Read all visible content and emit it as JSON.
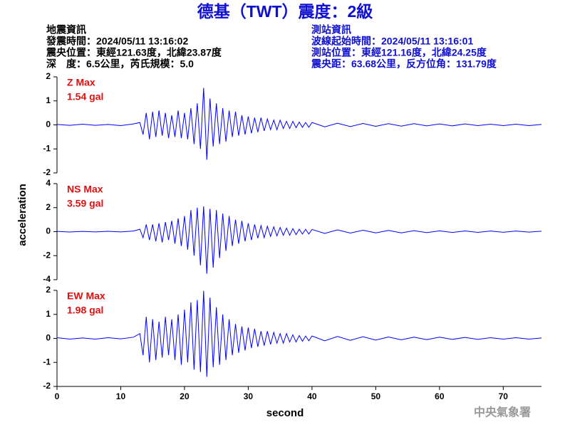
{
  "header": {
    "title": "德基（TWT）震度：2級",
    "left": [
      "地震資訊",
      "發震時間：2024/05/11 13:16:02",
      "震央位置：東經121.63度，北緯23.87度",
      "深　度：6.5公里，芮氏規模：5.0"
    ],
    "right": [
      "測站資訊",
      "波線起始時間：2024/05/11 13:16:01",
      "測站位置：東經121.16度，北緯24.25度",
      "震央距：63.68公里，反方位角：131.79度"
    ]
  },
  "footer": "中央氣象署",
  "chart_data": [
    {
      "type": "line",
      "annotations": [
        "Z Max",
        "1.54 gal"
      ],
      "x": [
        0,
        2,
        4,
        6,
        8,
        10,
        12,
        13,
        13.5,
        14,
        14.5,
        15,
        15.5,
        16,
        16.5,
        17,
        17.5,
        18,
        18.5,
        19,
        19.5,
        20,
        20.5,
        21,
        21.5,
        22,
        22.5,
        23,
        23.5,
        24,
        24.5,
        25,
        25.5,
        26,
        26.5,
        27,
        27.5,
        28,
        28.5,
        29,
        29.5,
        30,
        30.5,
        31,
        31.5,
        32,
        32.5,
        33,
        33.5,
        34,
        34.5,
        35,
        35.5,
        36,
        36.5,
        37,
        37.5,
        38,
        38.5,
        39,
        39.5,
        40,
        42,
        44,
        46,
        48,
        50,
        52,
        54,
        56,
        58,
        60,
        62,
        64,
        66,
        68,
        70,
        72,
        74,
        76
      ],
      "series": [
        {
          "color": "#0000ff",
          "values": [
            0.02,
            -0.02,
            0.03,
            -0.02,
            0.02,
            -0.03,
            0.04,
            0.1,
            -0.4,
            0.5,
            -0.6,
            0.55,
            -0.5,
            0.6,
            -0.45,
            0.5,
            -0.55,
            0.4,
            -0.5,
            0.6,
            -0.55,
            0.5,
            -0.6,
            0.7,
            -0.8,
            0.9,
            -1.0,
            1.54,
            -1.45,
            1.1,
            -0.9,
            0.9,
            -0.8,
            0.7,
            -0.7,
            0.6,
            -0.5,
            0.55,
            -0.45,
            0.4,
            -0.4,
            0.35,
            -0.35,
            0.3,
            -0.3,
            0.3,
            -0.25,
            0.25,
            -0.2,
            0.2,
            -0.2,
            0.2,
            -0.15,
            0.15,
            -0.15,
            0.15,
            -0.12,
            0.12,
            -0.1,
            0.1,
            -0.1,
            0.1,
            -0.08,
            0.07,
            -0.07,
            0.06,
            -0.06,
            0.05,
            -0.05,
            0.05,
            -0.04,
            0.04,
            -0.04,
            0.04,
            -0.03,
            0.03,
            -0.03,
            0.03,
            -0.03,
            0.02
          ]
        }
      ],
      "xlim": [
        0,
        76
      ],
      "ylim": [
        -2,
        2
      ],
      "yticks": [
        -2,
        -1,
        0,
        1,
        2
      ]
    },
    {
      "type": "line",
      "annotations": [
        "NS Max",
        "3.59 gal"
      ],
      "ylabel": "acceleration",
      "x": [
        0,
        2,
        4,
        6,
        8,
        10,
        12,
        13,
        13.5,
        14,
        14.5,
        15,
        15.5,
        16,
        16.5,
        17,
        17.5,
        18,
        18.5,
        19,
        19.5,
        20,
        20.5,
        21,
        21.5,
        22,
        22.5,
        23,
        23.5,
        24,
        24.5,
        25,
        25.5,
        26,
        26.5,
        27,
        27.5,
        28,
        28.5,
        29,
        29.5,
        30,
        30.5,
        31,
        31.5,
        32,
        32.5,
        33,
        33.5,
        34,
        34.5,
        35,
        35.5,
        36,
        36.5,
        37,
        37.5,
        38,
        38.5,
        39,
        39.5,
        40,
        42,
        44,
        46,
        48,
        50,
        52,
        54,
        56,
        58,
        60,
        62,
        64,
        66,
        68,
        70,
        72,
        74,
        76
      ],
      "series": [
        {
          "color": "#0000ff",
          "values": [
            0.02,
            -0.03,
            0.02,
            -0.02,
            0.03,
            -0.02,
            0.05,
            0.2,
            -0.5,
            0.6,
            -0.7,
            0.6,
            -0.8,
            0.7,
            -0.9,
            0.8,
            -0.7,
            0.9,
            -1.0,
            1.1,
            -1.2,
            1.3,
            -1.5,
            1.8,
            -2.0,
            2.0,
            -2.8,
            2.1,
            -3.5,
            1.9,
            -3.0,
            1.8,
            -2.2,
            1.5,
            -1.6,
            1.3,
            -1.2,
            1.0,
            -1.0,
            0.9,
            -0.8,
            0.7,
            -0.7,
            0.6,
            -0.55,
            0.5,
            -0.5,
            0.45,
            -0.4,
            0.4,
            -0.35,
            0.35,
            -0.3,
            0.3,
            -0.3,
            0.25,
            -0.25,
            0.2,
            -0.2,
            0.2,
            -0.2,
            0.18,
            -0.15,
            0.15,
            -0.12,
            0.12,
            -0.1,
            0.1,
            -0.1,
            0.08,
            -0.08,
            0.07,
            -0.07,
            0.06,
            -0.06,
            0.05,
            -0.05,
            0.05,
            -0.04,
            0.04
          ]
        }
      ],
      "xlim": [
        0,
        76
      ],
      "ylim": [
        -4,
        4
      ],
      "yticks": [
        -4,
        -2,
        0,
        2,
        4
      ]
    },
    {
      "type": "line",
      "annotations": [
        "EW Max",
        "1.98 gal"
      ],
      "xlabel": "second",
      "x": [
        0,
        2,
        4,
        6,
        8,
        10,
        12,
        13,
        13.5,
        14,
        14.5,
        15,
        15.5,
        16,
        16.5,
        17,
        17.5,
        18,
        18.5,
        19,
        19.5,
        20,
        20.5,
        21,
        21.5,
        22,
        22.5,
        23,
        23.5,
        24,
        24.5,
        25,
        25.5,
        26,
        26.5,
        27,
        27.5,
        28,
        28.5,
        29,
        29.5,
        30,
        30.5,
        31,
        31.5,
        32,
        32.5,
        33,
        33.5,
        34,
        34.5,
        35,
        35.5,
        36,
        36.5,
        37,
        37.5,
        38,
        38.5,
        39,
        39.5,
        40,
        42,
        44,
        46,
        48,
        50,
        52,
        54,
        56,
        58,
        60,
        62,
        64,
        66,
        68,
        70,
        72,
        74,
        76
      ],
      "series": [
        {
          "color": "#0000ff",
          "values": [
            0.03,
            -0.03,
            0.02,
            -0.03,
            0.03,
            -0.02,
            0.05,
            0.2,
            -0.7,
            0.9,
            -1.0,
            0.8,
            -0.9,
            0.7,
            -0.8,
            0.9,
            -0.7,
            0.8,
            -0.9,
            1.0,
            -1.1,
            1.2,
            -1.0,
            1.5,
            -1.3,
            1.6,
            -1.4,
            1.98,
            -1.6,
            1.7,
            -1.2,
            1.3,
            -1.1,
            1.0,
            -0.9,
            0.8,
            -0.7,
            0.6,
            -0.6,
            0.5,
            -0.5,
            0.45,
            -0.4,
            0.4,
            -0.35,
            0.3,
            -0.3,
            0.3,
            -0.25,
            0.25,
            -0.2,
            0.2,
            -0.2,
            0.2,
            -0.15,
            0.15,
            -0.15,
            0.12,
            -0.12,
            0.1,
            -0.1,
            0.1,
            -0.1,
            0.08,
            -0.08,
            0.07,
            -0.07,
            0.06,
            -0.06,
            0.05,
            -0.05,
            0.05,
            -0.04,
            0.04,
            -0.04,
            0.03,
            -0.03,
            0.03,
            -0.03,
            0.02
          ]
        }
      ],
      "xlim": [
        0,
        76
      ],
      "ylim": [
        -2,
        2
      ],
      "yticks": [
        -2,
        -1,
        0,
        1,
        2
      ],
      "xticks": [
        0,
        10,
        20,
        30,
        40,
        50,
        60,
        70
      ]
    }
  ]
}
